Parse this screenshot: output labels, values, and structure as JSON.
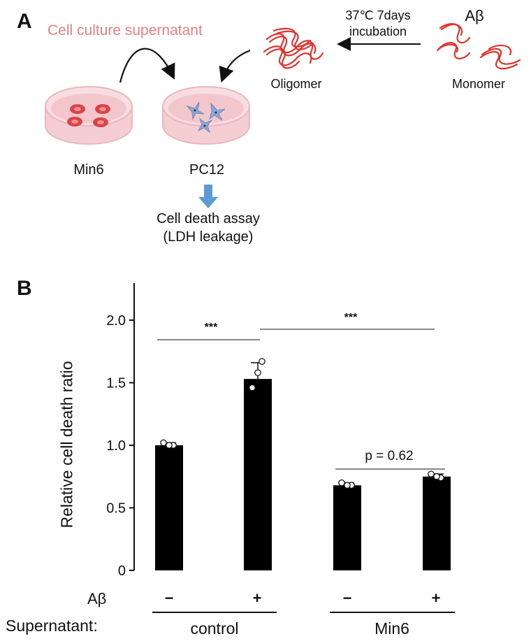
{
  "panel_a": {
    "letter": "A",
    "supernatant_label": "Cell culture supernatant",
    "incubation_line1": "37℃ 7days",
    "incubation_line2": "incubation",
    "abeta_label": "Aβ",
    "oligomer_label": "Oligomer",
    "monomer_label": "Monomer",
    "min6_label": "Min6",
    "pc12_label": "PC12",
    "assay_line1": "Cell death assay",
    "assay_line2": "(LDH leakage)",
    "colors": {
      "supernatant_text": "#e87f83",
      "dish_fill": "#f7d9dd",
      "dish_rim": "#e9b8be",
      "min6_cell": "#d9434a",
      "pc12_cell": "#8da8d8",
      "fibril": "#e0342f",
      "assay_arrow": "#5b9bd5"
    }
  },
  "panel_b": {
    "letter": "B",
    "abeta_row_label": "Aβ",
    "supernatant_row_label": "Supernatant:",
    "groups": [
      "control",
      "Min6"
    ],
    "abeta_signs": [
      "−",
      "+",
      "−",
      "+"
    ],
    "sig_labels": [
      "***",
      "***",
      "p = 0.62"
    ]
  },
  "chart_data": {
    "type": "bar",
    "ylabel": "Relative cell death ratio",
    "ylim": [
      0,
      2.3
    ],
    "yticks": [
      0,
      0.5,
      1.0,
      1.5,
      2.0
    ],
    "ytick_labels": [
      "0",
      "0.5",
      "1.0",
      "1.5",
      "2.0"
    ],
    "values": [
      1.0,
      1.53,
      0.68,
      0.75
    ],
    "errors": [
      0.02,
      0.13,
      0.02,
      0.02
    ],
    "points": [
      [
        1.02,
        1.0,
        1.0
      ],
      [
        1.67,
        1.58,
        1.46
      ],
      [
        0.7,
        0.68,
        0.68
      ],
      [
        0.77,
        0.74,
        0.75
      ]
    ],
    "bar_color": "#000000",
    "grid": false
  }
}
